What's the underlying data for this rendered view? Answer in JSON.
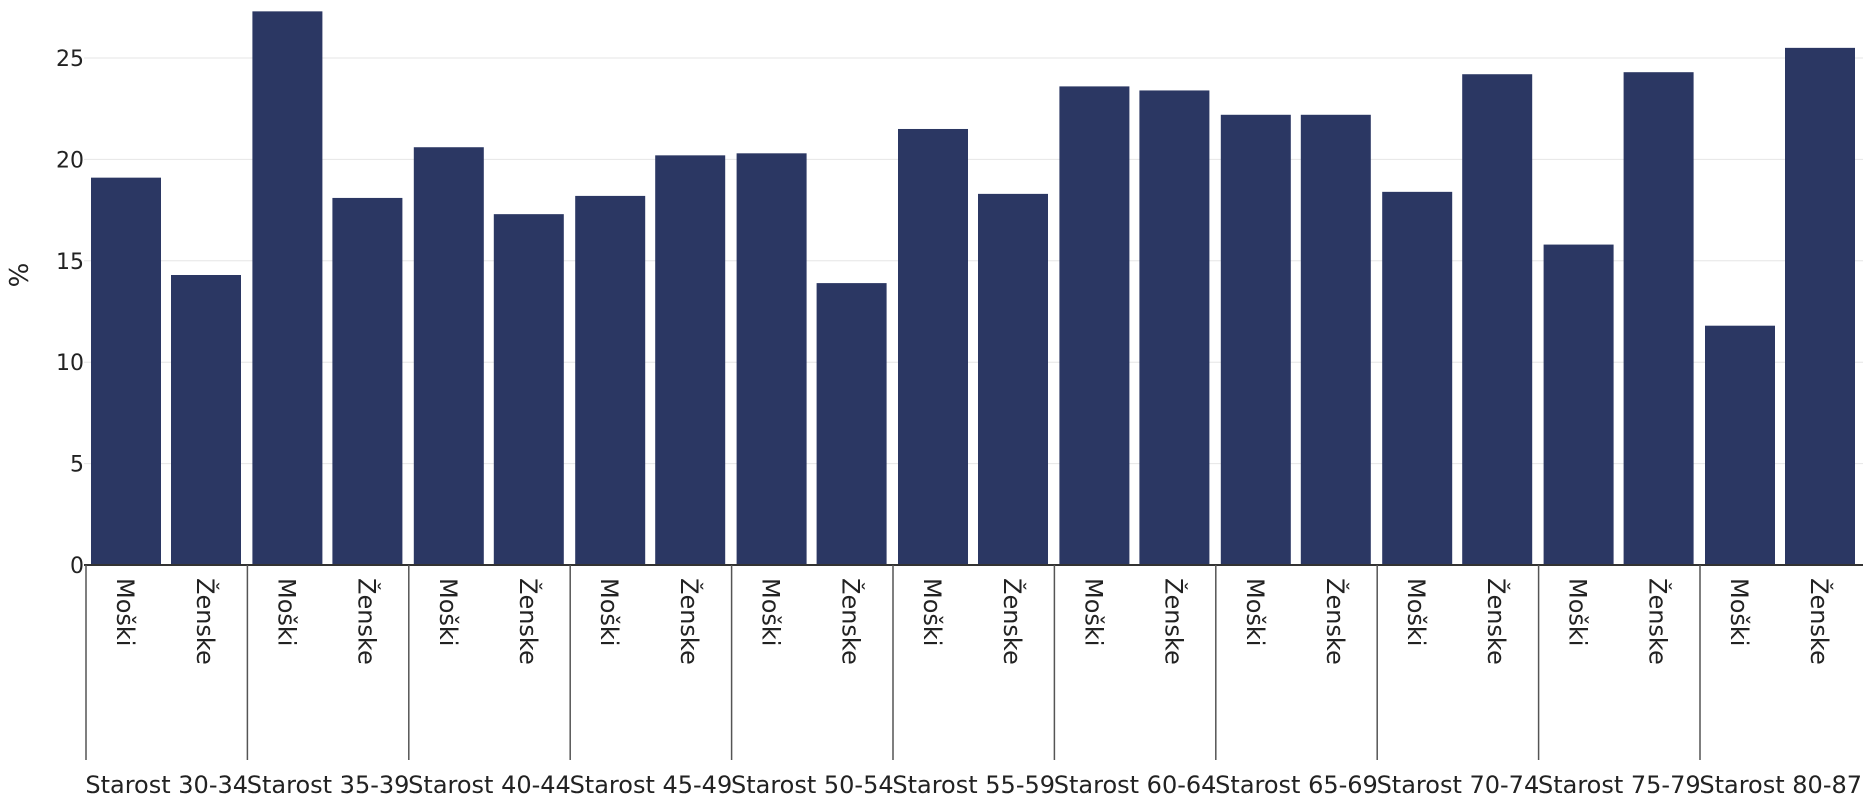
{
  "chart_data": {
    "type": "bar",
    "ylabel": "%",
    "ylim": [
      0,
      27.5
    ],
    "yticks": [
      0,
      5,
      10,
      15,
      20,
      25
    ],
    "grid": true,
    "legend": "none",
    "bar_color": "#2b3763",
    "groups": [
      "Starost 30-34",
      "Starost 35-39",
      "Starost 40-44",
      "Starost 45-49",
      "Starost 50-54",
      "Starost 55-59",
      "Starost 60-64",
      "Starost 65-69",
      "Starost 70-74",
      "Starost 75-79",
      "Starost 80-87"
    ],
    "categories": [
      "Moški",
      "Ženske"
    ],
    "values": [
      [
        19.1,
        14.3
      ],
      [
        27.3,
        18.1
      ],
      [
        20.6,
        17.3
      ],
      [
        18.2,
        20.2
      ],
      [
        20.3,
        13.9
      ],
      [
        21.5,
        18.3
      ],
      [
        23.6,
        23.4
      ],
      [
        22.2,
        22.2
      ],
      [
        18.4,
        24.2
      ],
      [
        15.8,
        24.3
      ],
      [
        11.8,
        25.5
      ]
    ]
  }
}
